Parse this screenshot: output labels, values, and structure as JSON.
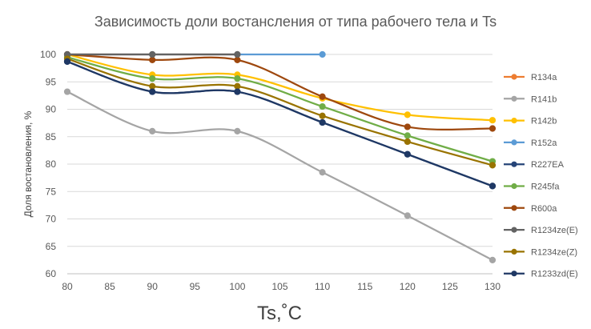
{
  "chart_data": {
    "type": "line",
    "title": "Зависимость доли востансления от типа рабочего тела и Ts",
    "xlabel": "Ts,˚C",
    "ylabel": "Доля востановления, %",
    "x": [
      80,
      90,
      100,
      110,
      120,
      130
    ],
    "xlim": [
      80,
      130
    ],
    "ylim": [
      60,
      100
    ],
    "x_ticks": [
      80,
      85,
      90,
      95,
      100,
      105,
      110,
      115,
      120,
      125,
      130
    ],
    "y_ticks": [
      60,
      65,
      70,
      75,
      80,
      85,
      90,
      95,
      100
    ],
    "grid": "horizontal",
    "legend_position": "right",
    "smooth": true,
    "series": [
      {
        "name": "R134a",
        "color": "#ed7d31",
        "values": [
          100,
          100,
          100,
          null,
          null,
          null
        ]
      },
      {
        "name": "R141b",
        "color": "#a5a5a5",
        "values": [
          93.2,
          86,
          86,
          78.5,
          70.6,
          62.5
        ]
      },
      {
        "name": "R142b",
        "color": "#ffc000",
        "values": [
          100,
          96.3,
          96.3,
          92,
          89,
          88
        ]
      },
      {
        "name": "R152a",
        "color": "#5b9bd5",
        "values": [
          100,
          100,
          100,
          100,
          null,
          null
        ]
      },
      {
        "name": "R227EA",
        "color": "#264478",
        "values": [
          98.7,
          93.2,
          93.2,
          87.6,
          81.8,
          76
        ]
      },
      {
        "name": "R245fa",
        "color": "#70ad47",
        "values": [
          99.5,
          95.6,
          95.6,
          90.5,
          85.2,
          80.5
        ]
      },
      {
        "name": "R600a",
        "color": "#9e480e",
        "values": [
          100,
          99,
          99,
          92.3,
          86.8,
          86.5
        ]
      },
      {
        "name": "R1234ze(E)",
        "color": "#636363",
        "values": [
          100,
          100,
          100,
          null,
          null,
          null
        ]
      },
      {
        "name": "R1234ze(Z)",
        "color": "#997300",
        "values": [
          99.2,
          94.2,
          94.2,
          88.8,
          84.1,
          79.8
        ]
      },
      {
        "name": "R1233zd(E)",
        "color": "#1f3864",
        "values": [
          98.7,
          93.2,
          93.2,
          87.6,
          81.8,
          76
        ]
      }
    ]
  }
}
